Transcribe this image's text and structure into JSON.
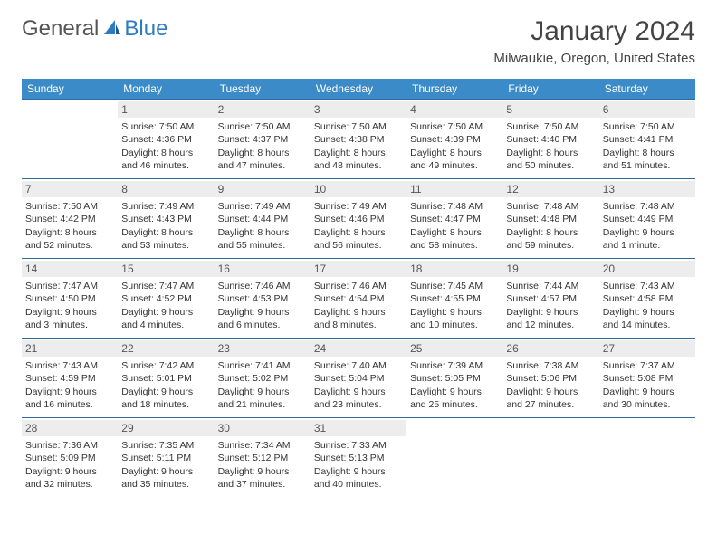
{
  "logo": {
    "text1": "General",
    "text2": "Blue"
  },
  "title": "January 2024",
  "location": "Milwaukie, Oregon, United States",
  "colors": {
    "header_bg": "#3b8bc9",
    "header_text": "#ffffff",
    "row_border": "#2f6aa0",
    "daynum_bg": "#ededed",
    "logo_accent": "#2d7bc0"
  },
  "weekdays": [
    "Sunday",
    "Monday",
    "Tuesday",
    "Wednesday",
    "Thursday",
    "Friday",
    "Saturday"
  ],
  "weeks": [
    [
      null,
      {
        "n": "1",
        "sr": "7:50 AM",
        "ss": "4:36 PM",
        "dl": "8 hours and 46 minutes."
      },
      {
        "n": "2",
        "sr": "7:50 AM",
        "ss": "4:37 PM",
        "dl": "8 hours and 47 minutes."
      },
      {
        "n": "3",
        "sr": "7:50 AM",
        "ss": "4:38 PM",
        "dl": "8 hours and 48 minutes."
      },
      {
        "n": "4",
        "sr": "7:50 AM",
        "ss": "4:39 PM",
        "dl": "8 hours and 49 minutes."
      },
      {
        "n": "5",
        "sr": "7:50 AM",
        "ss": "4:40 PM",
        "dl": "8 hours and 50 minutes."
      },
      {
        "n": "6",
        "sr": "7:50 AM",
        "ss": "4:41 PM",
        "dl": "8 hours and 51 minutes."
      }
    ],
    [
      {
        "n": "7",
        "sr": "7:50 AM",
        "ss": "4:42 PM",
        "dl": "8 hours and 52 minutes."
      },
      {
        "n": "8",
        "sr": "7:49 AM",
        "ss": "4:43 PM",
        "dl": "8 hours and 53 minutes."
      },
      {
        "n": "9",
        "sr": "7:49 AM",
        "ss": "4:44 PM",
        "dl": "8 hours and 55 minutes."
      },
      {
        "n": "10",
        "sr": "7:49 AM",
        "ss": "4:46 PM",
        "dl": "8 hours and 56 minutes."
      },
      {
        "n": "11",
        "sr": "7:48 AM",
        "ss": "4:47 PM",
        "dl": "8 hours and 58 minutes."
      },
      {
        "n": "12",
        "sr": "7:48 AM",
        "ss": "4:48 PM",
        "dl": "8 hours and 59 minutes."
      },
      {
        "n": "13",
        "sr": "7:48 AM",
        "ss": "4:49 PM",
        "dl": "9 hours and 1 minute."
      }
    ],
    [
      {
        "n": "14",
        "sr": "7:47 AM",
        "ss": "4:50 PM",
        "dl": "9 hours and 3 minutes."
      },
      {
        "n": "15",
        "sr": "7:47 AM",
        "ss": "4:52 PM",
        "dl": "9 hours and 4 minutes."
      },
      {
        "n": "16",
        "sr": "7:46 AM",
        "ss": "4:53 PM",
        "dl": "9 hours and 6 minutes."
      },
      {
        "n": "17",
        "sr": "7:46 AM",
        "ss": "4:54 PM",
        "dl": "9 hours and 8 minutes."
      },
      {
        "n": "18",
        "sr": "7:45 AM",
        "ss": "4:55 PM",
        "dl": "9 hours and 10 minutes."
      },
      {
        "n": "19",
        "sr": "7:44 AM",
        "ss": "4:57 PM",
        "dl": "9 hours and 12 minutes."
      },
      {
        "n": "20",
        "sr": "7:43 AM",
        "ss": "4:58 PM",
        "dl": "9 hours and 14 minutes."
      }
    ],
    [
      {
        "n": "21",
        "sr": "7:43 AM",
        "ss": "4:59 PM",
        "dl": "9 hours and 16 minutes."
      },
      {
        "n": "22",
        "sr": "7:42 AM",
        "ss": "5:01 PM",
        "dl": "9 hours and 18 minutes."
      },
      {
        "n": "23",
        "sr": "7:41 AM",
        "ss": "5:02 PM",
        "dl": "9 hours and 21 minutes."
      },
      {
        "n": "24",
        "sr": "7:40 AM",
        "ss": "5:04 PM",
        "dl": "9 hours and 23 minutes."
      },
      {
        "n": "25",
        "sr": "7:39 AM",
        "ss": "5:05 PM",
        "dl": "9 hours and 25 minutes."
      },
      {
        "n": "26",
        "sr": "7:38 AM",
        "ss": "5:06 PM",
        "dl": "9 hours and 27 minutes."
      },
      {
        "n": "27",
        "sr": "7:37 AM",
        "ss": "5:08 PM",
        "dl": "9 hours and 30 minutes."
      }
    ],
    [
      {
        "n": "28",
        "sr": "7:36 AM",
        "ss": "5:09 PM",
        "dl": "9 hours and 32 minutes."
      },
      {
        "n": "29",
        "sr": "7:35 AM",
        "ss": "5:11 PM",
        "dl": "9 hours and 35 minutes."
      },
      {
        "n": "30",
        "sr": "7:34 AM",
        "ss": "5:12 PM",
        "dl": "9 hours and 37 minutes."
      },
      {
        "n": "31",
        "sr": "7:33 AM",
        "ss": "5:13 PM",
        "dl": "9 hours and 40 minutes."
      },
      null,
      null,
      null
    ]
  ],
  "labels": {
    "sunrise": "Sunrise:",
    "sunset": "Sunset:",
    "daylight": "Daylight:"
  }
}
